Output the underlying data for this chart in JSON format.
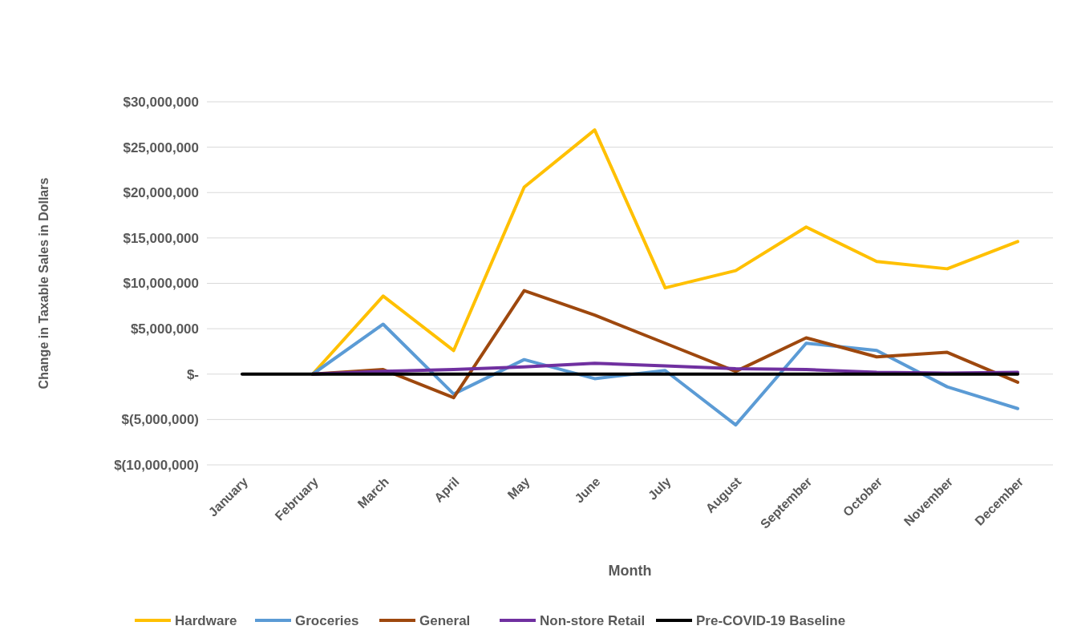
{
  "chart_data": {
    "type": "line",
    "xlabel": "Month",
    "ylabel": "Change in Taxable Sales in Dollars",
    "categories": [
      "January",
      "February",
      "March",
      "April",
      "May",
      "June",
      "July",
      "August",
      "September",
      "October",
      "November",
      "December"
    ],
    "series": [
      {
        "name": "Hardware",
        "color": "#ffc000",
        "values": [
          null,
          0,
          8600000,
          2600000,
          20600000,
          26900000,
          9500000,
          11400000,
          16200000,
          12400000,
          11600000,
          14600000
        ]
      },
      {
        "name": "Groceries",
        "color": "#5b9bd5",
        "values": [
          null,
          0,
          5500000,
          -2200000,
          1600000,
          -500000,
          400000,
          -5600000,
          3400000,
          2600000,
          -1400000,
          -3800000
        ]
      },
      {
        "name": "General",
        "color": "#9e480e",
        "values": [
          null,
          0,
          500000,
          -2600000,
          9200000,
          6500000,
          3400000,
          300000,
          4000000,
          1900000,
          2400000,
          -900000
        ]
      },
      {
        "name": "Non-store Retail",
        "color": "#7030a0",
        "values": [
          null,
          0,
          300000,
          500000,
          800000,
          1200000,
          900000,
          600000,
          500000,
          200000,
          100000,
          200000
        ]
      },
      {
        "name": "Pre-COVID-19 Baseline",
        "color": "#000000",
        "values": [
          0,
          0,
          0,
          0,
          0,
          0,
          0,
          0,
          0,
          0,
          0,
          0
        ]
      }
    ],
    "ylim": [
      -10000000,
      30000000
    ],
    "yticks": [
      {
        "value": -10000000,
        "label": "$(10,000,000)"
      },
      {
        "value": -5000000,
        "label": "$(5,000,000)"
      },
      {
        "value": 0,
        "label": "$-"
      },
      {
        "value": 5000000,
        "label": "$5,000,000"
      },
      {
        "value": 10000000,
        "label": "$10,000,000"
      },
      {
        "value": 15000000,
        "label": "$15,000,000"
      },
      {
        "value": 20000000,
        "label": "$20,000,000"
      },
      {
        "value": 25000000,
        "label": "$25,000,000"
      },
      {
        "value": 30000000,
        "label": "$30,000,000"
      }
    ],
    "grid": "y",
    "legend": "bottom",
    "marker": "none",
    "line_style": "solid"
  }
}
